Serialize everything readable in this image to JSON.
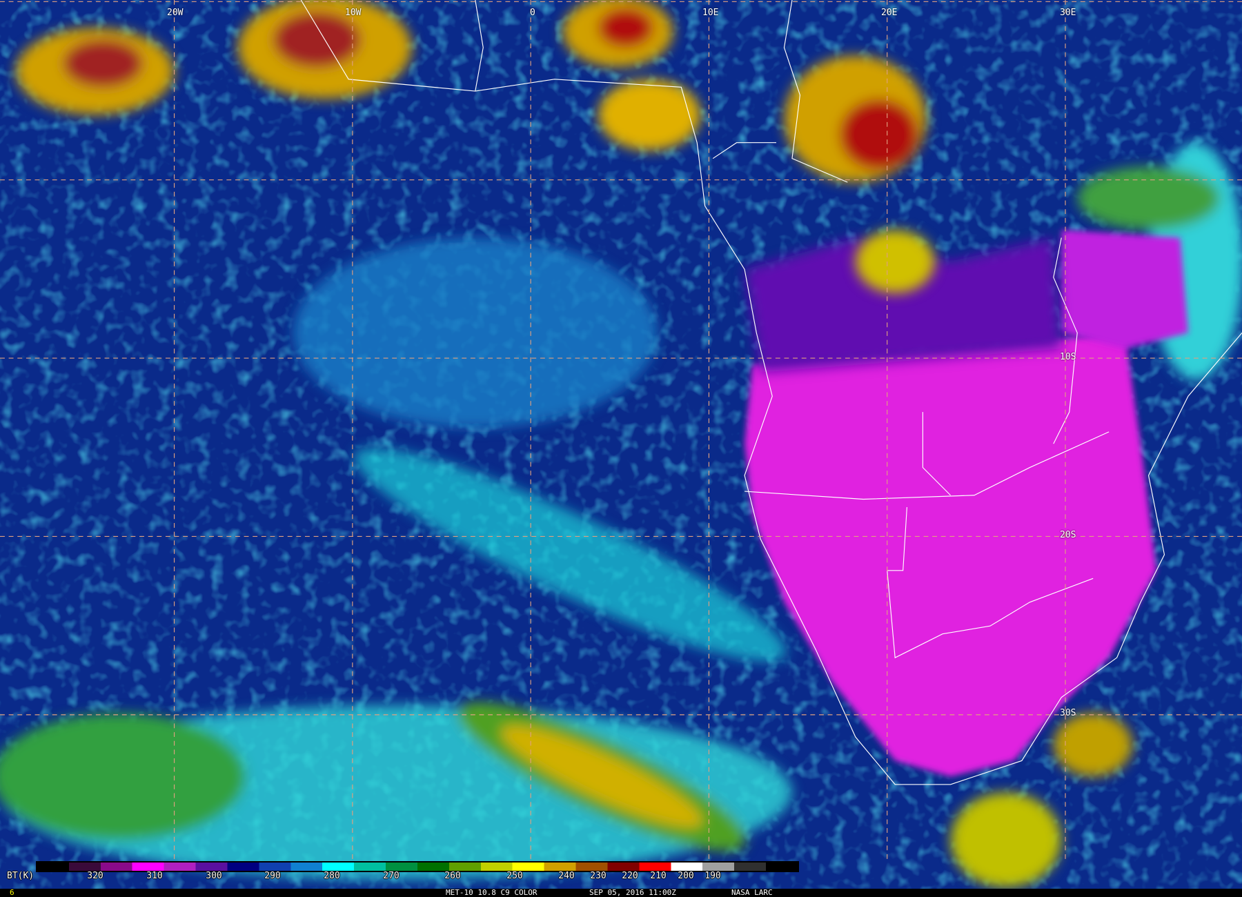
{
  "grid_labels": {
    "lon": [
      "20W",
      "10W",
      "0",
      "10E",
      "20E",
      "30E"
    ],
    "lat": [
      "10S",
      "20S",
      "30S"
    ]
  },
  "colorbar": {
    "unit_label": "BT(K)",
    "ticks": [
      "320",
      "310",
      "300",
      "290",
      "280",
      "270",
      "260",
      "250",
      "240",
      "230",
      "220",
      "210",
      "200",
      "190"
    ],
    "colors": [
      "#000000",
      "#3a0a3a",
      "#8a0a8a",
      "#ff00ff",
      "#b020c0",
      "#5a10a0",
      "#000080",
      "#1040b0",
      "#1080d0",
      "#00ffff",
      "#00c0a0",
      "#009040",
      "#007000",
      "#60a000",
      "#c0d000",
      "#ffff00",
      "#d0a000",
      "#a05000",
      "#800000",
      "#ff0000",
      "#ffffff",
      "#a0a0a0",
      "#303030",
      "#000000"
    ]
  },
  "footer": {
    "left_number": "6",
    "product": "MET-10 10.8 C9 COLOR",
    "datetime": "SEP 05, 2016 11:00Z",
    "credit": "NASA LARC"
  },
  "colors": {
    "land_hot": "#e020e0",
    "ocean": "#0a2a8a",
    "cloud_low": "#20d0e0",
    "cloud_cold": "#e0c000",
    "cloud_coldest": "#c01010",
    "grid": "#e0a080",
    "coast": "#ffffff"
  }
}
